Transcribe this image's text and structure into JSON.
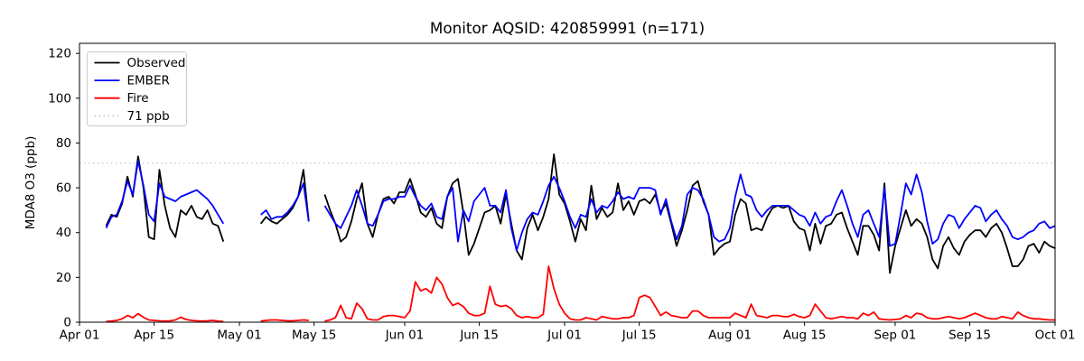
{
  "figure": {
    "title": "Monitor AQSID: 420859991 (n=171)",
    "y_axis_label": "MDA8 O3 (ppb)"
  },
  "legend": {
    "entries": [
      {
        "label": "Observed",
        "color": "#000000",
        "style": "solid"
      },
      {
        "label": "EMBER",
        "color": "#0000ff",
        "style": "solid"
      },
      {
        "label": "Fire",
        "color": "#ff0000",
        "style": "solid"
      },
      {
        "label": "71 ppb",
        "color": "#c8c8c8",
        "style": "dotted"
      }
    ]
  },
  "chart_data": {
    "type": "line",
    "title": "Monitor AQSID: 420859991 (n=171)",
    "xlabel": "",
    "ylabel": "MDA8 O3 (ppb)",
    "n_points": 171,
    "grid": false,
    "legend_position": "upper left",
    "ylim": [
      0,
      124.5
    ],
    "y_ticks": [
      0,
      20,
      40,
      60,
      80,
      100,
      120
    ],
    "x_span_days": 183,
    "x_ticks": [
      {
        "label": "Apr 01",
        "day": 0
      },
      {
        "label": "Apr 15",
        "day": 14
      },
      {
        "label": "May 01",
        "day": 30
      },
      {
        "label": "May 15",
        "day": 44
      },
      {
        "label": "Jun 01",
        "day": 61
      },
      {
        "label": "Jun 15",
        "day": 75
      },
      {
        "label": "Jul 01",
        "day": 91
      },
      {
        "label": "Jul 15",
        "day": 105
      },
      {
        "label": "Aug 01",
        "day": 122
      },
      {
        "label": "Aug 15",
        "day": 136
      },
      {
        "label": "Sep 01",
        "day": 153
      },
      {
        "label": "Sep 15",
        "day": 167
      },
      {
        "label": "Oct 01",
        "day": 183
      }
    ],
    "threshold": {
      "value": 71,
      "label": "71 ppb",
      "color": "#c8c8c8",
      "style": "dotted"
    },
    "series_meta": [
      {
        "key": "observed",
        "name": "Observed",
        "color": "#000000"
      },
      {
        "key": "ember",
        "name": "EMBER",
        "color": "#0000ff"
      },
      {
        "key": "fire",
        "name": "Fire",
        "color": "#ff0000"
      }
    ],
    "segments": [
      {
        "start_date": "Apr 06",
        "start_day": 5,
        "observed": [
          43,
          48,
          47,
          53,
          65,
          56,
          74,
          60,
          38,
          37,
          68,
          52,
          42,
          38,
          50,
          48,
          52,
          47,
          46,
          50,
          44,
          43,
          36
        ],
        "ember": [
          42,
          47,
          48,
          54,
          63,
          57,
          72,
          61,
          48,
          45,
          62,
          56,
          55,
          54,
          56,
          57,
          58,
          59,
          57,
          55,
          52,
          48,
          44
        ],
        "fire": [
          0.3,
          0.5,
          0.8,
          1.5,
          3,
          2,
          3.8,
          2.2,
          1,
          0.8,
          0.6,
          0.5,
          0.6,
          1,
          2.2,
          1.2,
          0.8,
          0.6,
          0.5,
          0.6,
          0.8,
          0.5,
          0.3
        ]
      },
      {
        "start_date": "May 05",
        "start_day": 34,
        "observed": [
          44,
          47,
          45,
          44,
          46,
          48,
          51,
          56,
          68,
          45
        ],
        "ember": [
          48,
          50,
          46,
          47,
          47,
          49,
          52,
          56,
          62,
          45
        ],
        "fire": [
          0.5,
          0.8,
          1,
          1,
          0.8,
          0.6,
          0.6,
          0.8,
          1,
          0.8
        ]
      },
      {
        "start_date": "May 17",
        "start_day": 46,
        "observed": [
          57,
          50,
          44,
          36,
          38,
          45,
          55,
          62,
          44,
          38,
          48,
          55,
          56,
          53,
          58,
          58,
          64,
          57,
          49,
          47,
          51,
          44,
          42,
          56,
          62,
          64,
          49,
          30,
          35,
          42,
          49,
          50,
          52,
          44,
          57,
          44,
          32,
          28,
          42,
          48,
          41,
          47,
          55,
          75,
          57,
          53,
          45,
          36,
          46,
          41,
          61,
          46,
          51,
          47,
          49,
          62,
          50,
          54,
          48,
          54,
          55,
          53,
          57,
          49,
          53,
          44,
          34,
          41,
          50,
          61,
          63,
          54,
          48,
          30,
          33,
          35,
          36,
          48,
          55,
          53,
          41,
          42,
          41,
          47,
          51,
          52,
          51,
          52,
          45,
          42,
          41,
          32,
          44,
          35,
          43,
          44,
          48,
          49,
          42,
          36,
          30,
          43,
          43,
          39,
          32,
          62,
          22,
          34,
          42,
          50,
          43,
          46,
          44,
          38,
          28,
          24,
          34,
          38,
          33,
          30,
          36,
          39,
          41,
          41,
          38,
          42,
          44,
          40,
          33,
          25,
          25,
          28,
          34,
          35,
          31,
          36,
          34,
          33
        ],
        "ember": [
          52,
          48,
          44,
          42,
          47,
          52,
          59,
          52,
          44,
          43,
          48,
          54,
          55,
          55,
          56,
          56,
          61,
          56,
          52,
          50,
          53,
          47,
          46,
          56,
          60,
          36,
          50,
          45,
          54,
          57,
          60,
          52,
          52,
          49,
          59,
          42,
          32,
          40,
          46,
          49,
          48,
          54,
          61,
          65,
          60,
          54,
          47,
          42,
          48,
          47,
          55,
          49,
          52,
          51,
          54,
          58,
          55,
          56,
          55,
          60,
          60,
          60,
          59,
          48,
          55,
          45,
          37,
          43,
          57,
          60,
          59,
          55,
          48,
          38,
          36,
          37,
          42,
          56,
          66,
          57,
          56,
          50,
          47,
          50,
          52,
          52,
          52,
          52,
          50,
          48,
          47,
          43,
          49,
          44,
          47,
          48,
          54,
          59,
          52,
          44,
          38,
          48,
          50,
          44,
          38,
          60,
          34,
          35,
          48,
          62,
          57,
          66,
          58,
          45,
          35,
          37,
          44,
          48,
          47,
          42,
          46,
          49,
          52,
          51,
          45,
          48,
          50,
          46,
          43,
          38,
          37,
          38,
          40,
          41,
          44,
          45,
          42,
          43
        ],
        "fire": [
          0.5,
          1,
          2,
          7.5,
          2,
          1.5,
          8.5,
          6,
          1.5,
          1,
          1,
          2.5,
          3,
          3,
          2.5,
          2,
          5,
          18,
          14,
          15,
          13,
          20,
          17,
          11,
          7.5,
          8.5,
          7,
          4,
          3,
          3,
          4,
          16,
          8,
          7,
          7.5,
          6,
          3,
          2,
          2.5,
          2,
          2,
          3.5,
          25,
          15,
          8,
          4,
          1.5,
          1,
          1,
          2,
          1.5,
          1,
          2.5,
          2,
          1.5,
          1.5,
          2,
          2,
          3,
          11,
          12,
          11,
          7,
          3,
          4.5,
          3,
          2.5,
          2,
          2,
          5,
          5,
          3,
          2,
          2,
          2,
          2,
          2,
          4,
          3,
          2,
          8,
          3,
          2.5,
          2,
          3,
          3,
          2.5,
          2.5,
          3.5,
          2.5,
          2,
          3,
          8,
          5,
          2,
          1.5,
          2,
          2.5,
          2,
          2,
          1.5,
          4,
          3,
          4.5,
          1.5,
          1.2,
          1,
          1.2,
          1.5,
          3,
          2,
          4,
          3.5,
          2,
          1.5,
          1.5,
          2,
          2.5,
          2,
          1.5,
          2,
          3,
          4,
          3,
          2,
          1.5,
          1.5,
          2.5,
          2,
          1.5,
          4.5,
          3,
          2,
          1.5,
          1.5,
          1.2,
          1,
          1
        ]
      }
    ]
  }
}
